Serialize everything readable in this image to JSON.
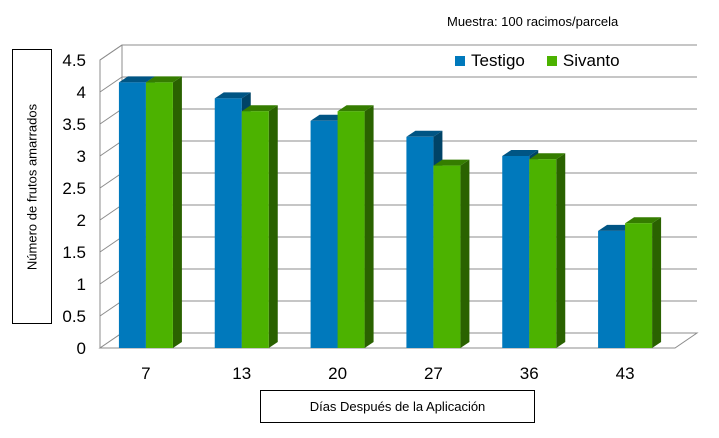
{
  "chart_data": {
    "type": "bar",
    "subtitle": "Muestra: 100 racimos/parcela",
    "xlabel": "Días Después de la Aplicación",
    "ylabel": "Número de frutos amarrados",
    "categories": [
      "7",
      "13",
      "20",
      "27",
      "36",
      "43"
    ],
    "ylim": [
      0,
      4.5
    ],
    "yticks": [
      "0",
      "0.5",
      "1",
      "1.5",
      "2",
      "2.5",
      "3",
      "3.5",
      "4",
      "4.5"
    ],
    "grid": true,
    "legend_position": "top-right",
    "series": [
      {
        "name": "Testigo",
        "color": "#0079BC",
        "values": [
          4.15,
          3.9,
          3.55,
          3.3,
          3.0,
          1.83
        ]
      },
      {
        "name": "Sivanto",
        "color": "#4CB200",
        "values": [
          4.15,
          3.7,
          3.7,
          2.85,
          2.95,
          1.95
        ]
      }
    ]
  }
}
